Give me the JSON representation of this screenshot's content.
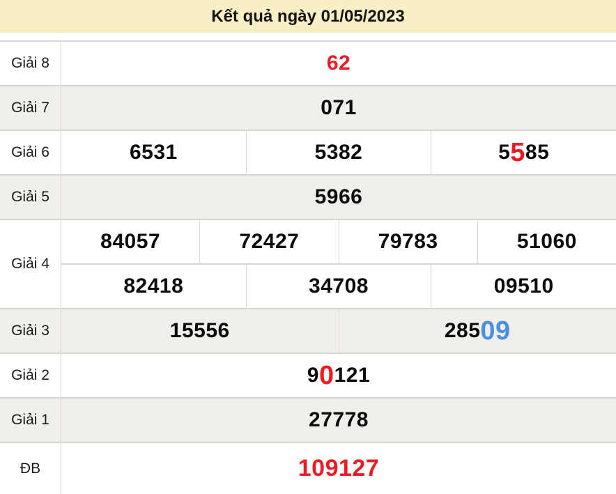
{
  "header": {
    "title": "Kết quả ngày 01/05/2023"
  },
  "colors": {
    "header_bg": "#F9EFC4",
    "row_shade": "#F0EFEB",
    "border": "#D9D6CF",
    "number": "#0B0B0B",
    "red": "#ED1C24",
    "blue": "#4A90E2"
  },
  "rows": [
    {
      "key": "giai-8",
      "label": "Giải 8",
      "shaded": false,
      "subrows": [
        [
          {
            "parts": [
              {
                "text": "62",
                "color": "red",
                "big": false
              }
            ]
          }
        ]
      ]
    },
    {
      "key": "giai-7",
      "label": "Giải 7",
      "shaded": true,
      "subrows": [
        [
          {
            "parts": [
              {
                "text": "071",
                "color": "default",
                "big": false
              }
            ]
          }
        ]
      ]
    },
    {
      "key": "giai-6",
      "label": "Giải 6",
      "shaded": false,
      "subrows": [
        [
          {
            "parts": [
              {
                "text": "6531",
                "color": "default",
                "big": false
              }
            ]
          },
          {
            "parts": [
              {
                "text": "5382",
                "color": "default",
                "big": false
              }
            ]
          },
          {
            "parts": [
              {
                "text": "5",
                "color": "default",
                "big": false
              },
              {
                "text": "5",
                "color": "red",
                "big": true
              },
              {
                "text": "85",
                "color": "default",
                "big": false
              }
            ]
          }
        ]
      ]
    },
    {
      "key": "giai-5",
      "label": "Giải 5",
      "shaded": true,
      "subrows": [
        [
          {
            "parts": [
              {
                "text": "5966",
                "color": "default",
                "big": false
              }
            ]
          }
        ]
      ]
    },
    {
      "key": "giai-4",
      "label": "Giải 4",
      "shaded": false,
      "subrows": [
        [
          {
            "parts": [
              {
                "text": "84057",
                "color": "default",
                "big": false
              }
            ]
          },
          {
            "parts": [
              {
                "text": "72427",
                "color": "default",
                "big": false
              }
            ]
          },
          {
            "parts": [
              {
                "text": "79783",
                "color": "default",
                "big": false
              }
            ]
          },
          {
            "parts": [
              {
                "text": "51060",
                "color": "default",
                "big": false
              }
            ]
          }
        ],
        [
          {
            "parts": [
              {
                "text": "82418",
                "color": "default",
                "big": false
              }
            ]
          },
          {
            "parts": [
              {
                "text": "34708",
                "color": "default",
                "big": false
              }
            ]
          },
          {
            "parts": [
              {
                "text": "09510",
                "color": "default",
                "big": false
              }
            ]
          }
        ]
      ]
    },
    {
      "key": "giai-3",
      "label": "Giải 3",
      "shaded": true,
      "subrows": [
        [
          {
            "parts": [
              {
                "text": "15556",
                "color": "default",
                "big": false
              }
            ]
          },
          {
            "parts": [
              {
                "text": "285",
                "color": "default",
                "big": false
              },
              {
                "text": "09",
                "color": "blue",
                "big": true
              }
            ]
          }
        ]
      ]
    },
    {
      "key": "giai-2",
      "label": "Giải 2",
      "shaded": false,
      "subrows": [
        [
          {
            "parts": [
              {
                "text": "9",
                "color": "default",
                "big": false
              },
              {
                "text": "0",
                "color": "red",
                "big": true
              },
              {
                "text": "121",
                "color": "default",
                "big": false
              }
            ]
          }
        ]
      ]
    },
    {
      "key": "giai-1",
      "label": "Giải 1",
      "shaded": true,
      "subrows": [
        [
          {
            "parts": [
              {
                "text": "27778",
                "color": "default",
                "big": false
              }
            ]
          }
        ]
      ]
    },
    {
      "key": "db",
      "label": "ĐB",
      "shaded": false,
      "subrows": [
        [
          {
            "parts": [
              {
                "text": "109127",
                "color": "red",
                "big": false
              }
            ]
          }
        ]
      ]
    }
  ]
}
